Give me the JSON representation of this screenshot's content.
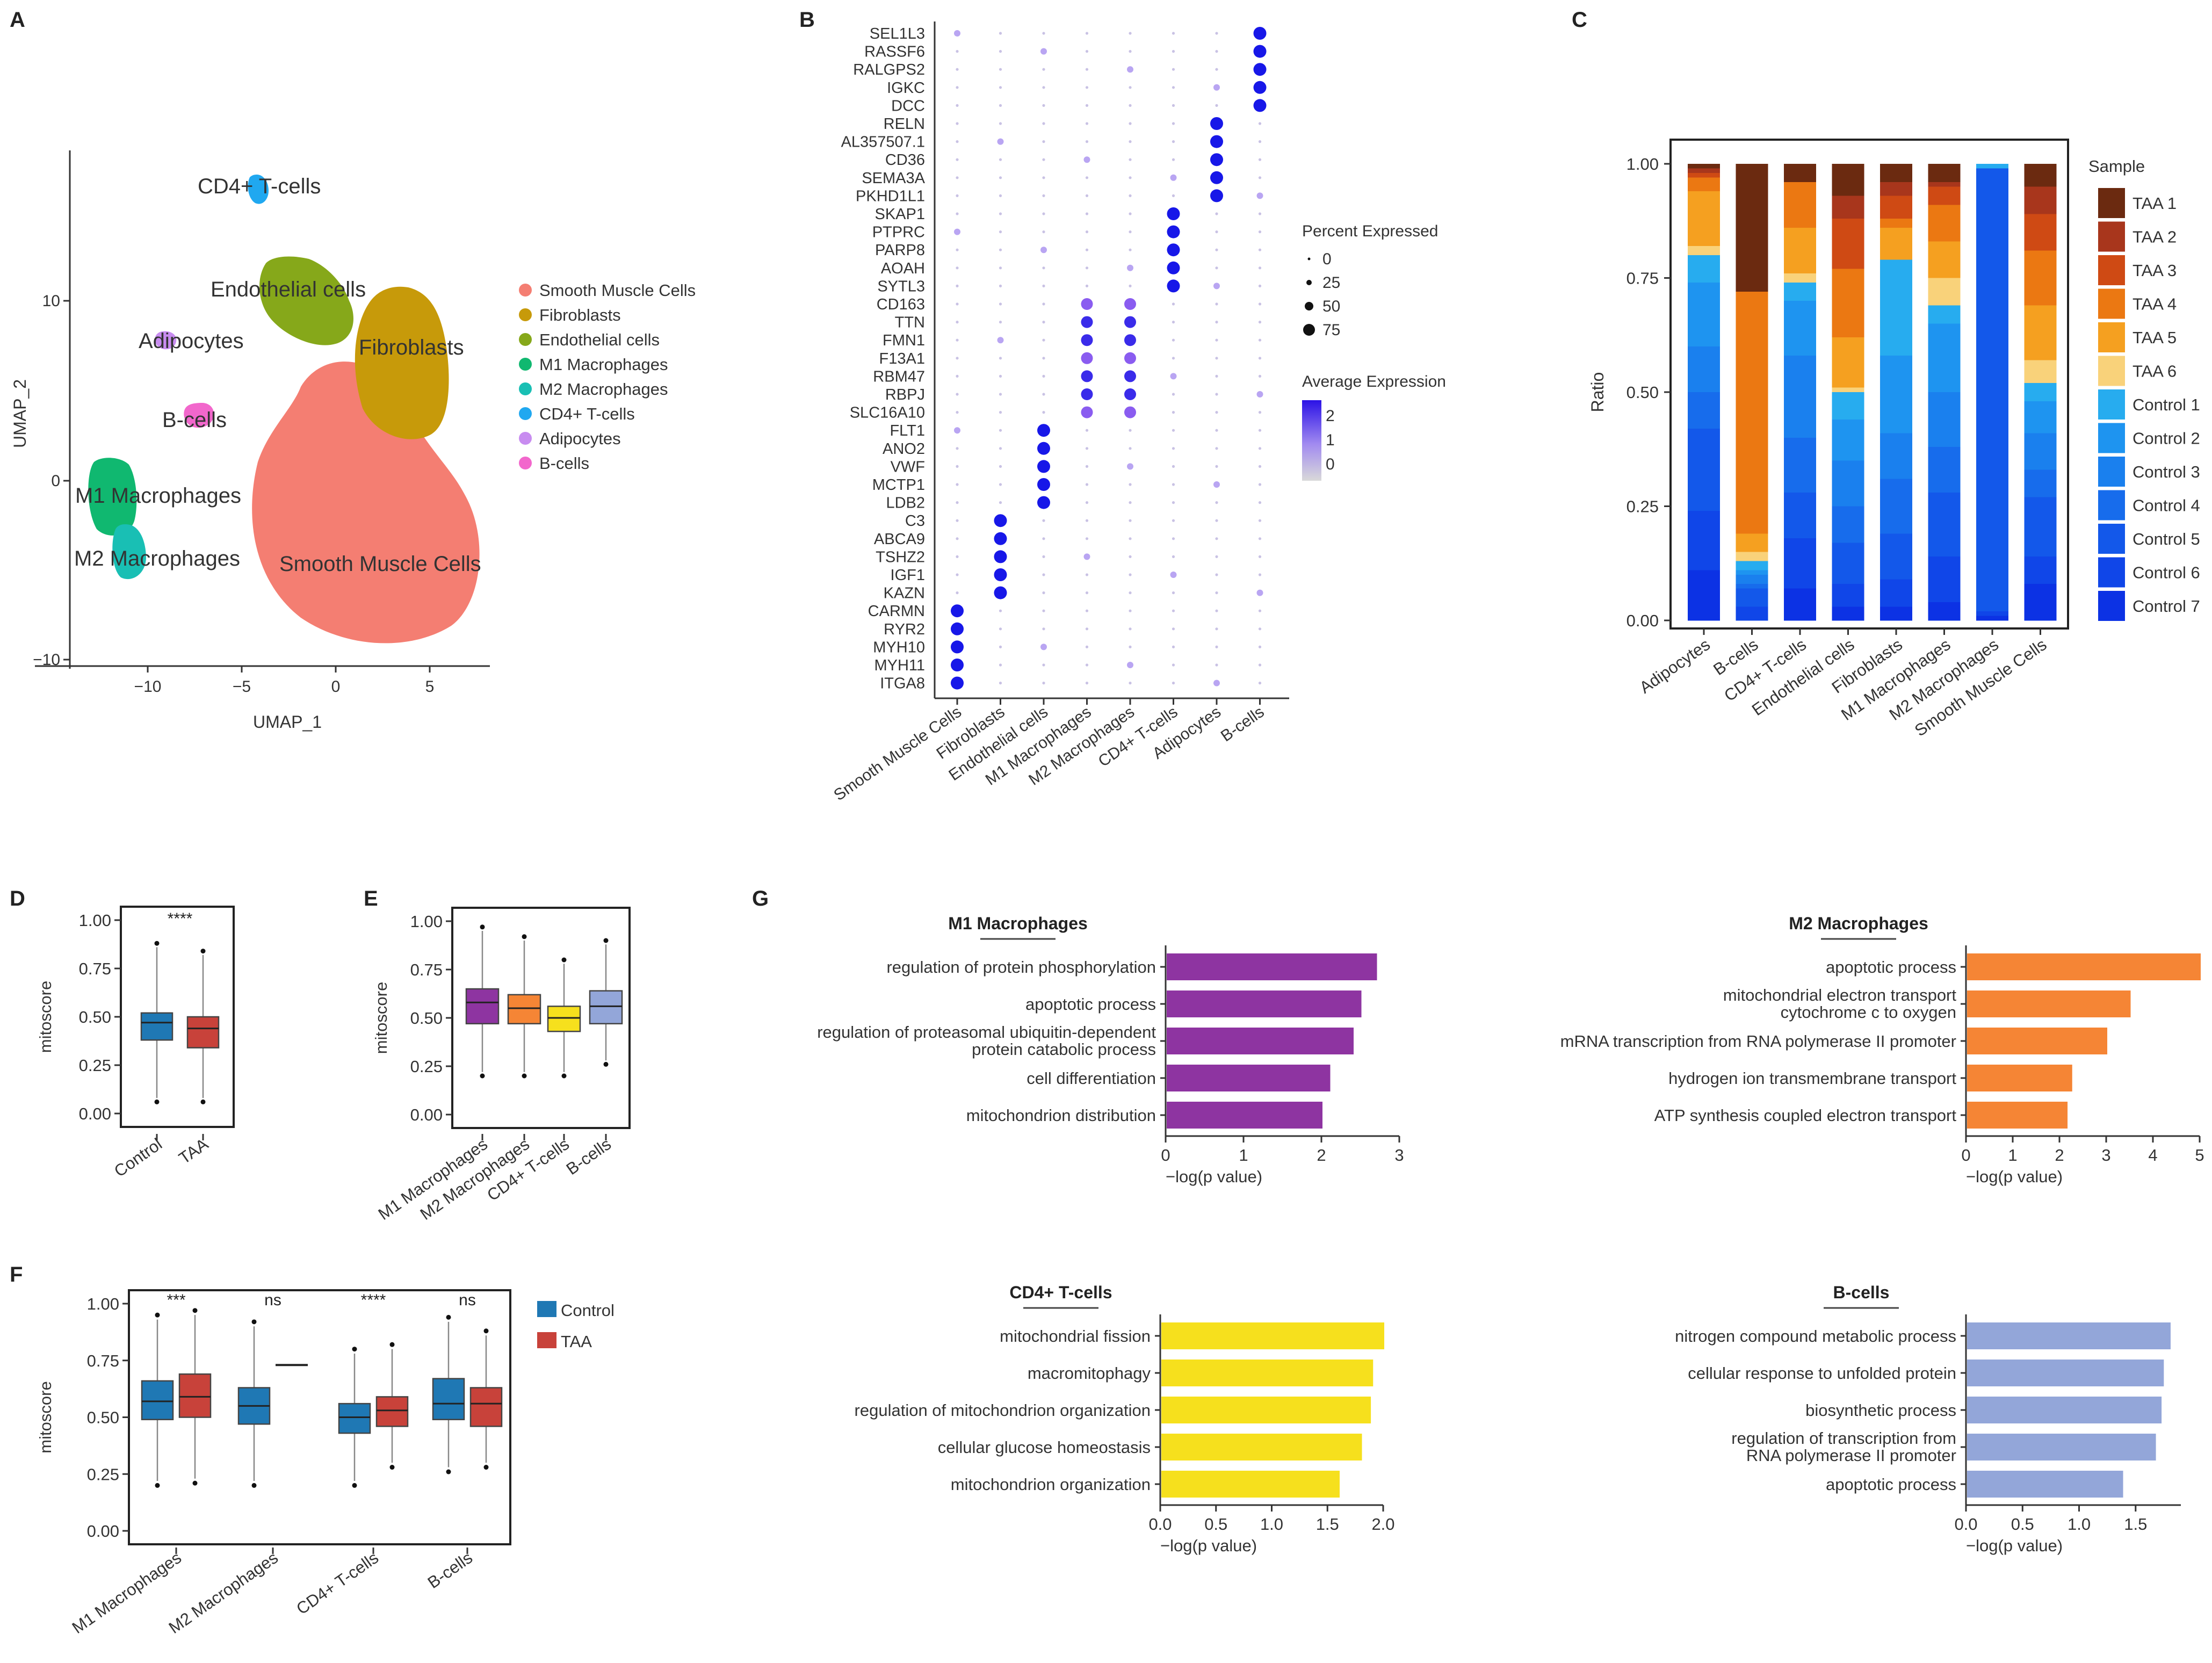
{
  "panel_letters": {
    "A": "A",
    "B": "B",
    "C": "C",
    "D": "D",
    "E": "E",
    "F": "F",
    "G": "G"
  },
  "colors": {
    "Smooth Muscle Cells": "#F47E72",
    "Fibroblasts": "#C79A0A",
    "Endothelial cells": "#86A81A",
    "M1 Macrophages": "#10B870",
    "M2 Macrophages": "#19BFB4",
    "CD4+ T-cells": "#20A8F0",
    "Adipocytes": "#C88CF0",
    "B-cells": "#F267CC",
    "box_control": "#1F78B4",
    "box_taa": "#C8423A",
    "go_m1": "#8E34A1",
    "go_m2": "#F58535",
    "go_cd4": "#F6E01D",
    "go_b": "#93A6D9"
  },
  "panelA": {
    "xlabel": "UMAP_1",
    "ylabel": "UMAP_2",
    "xticks": [
      "−10",
      "−5",
      "0",
      "5"
    ],
    "yticks": [
      "10",
      "0",
      "−10"
    ],
    "cluster_labels": [
      "CD4+ T-cells",
      "Endothelial cells",
      "Adipocytes",
      "Fibroblasts",
      "B-cells",
      "M1 Macrophages",
      "M2 Macrophages",
      "Smooth Muscle Cells"
    ],
    "legend": [
      "Smooth Muscle Cells",
      "Fibroblasts",
      "Endothelial cells",
      "M1 Macrophages",
      "M2 Macrophages",
      "CD4+ T-cells",
      "Adipocytes",
      "B-cells"
    ]
  },
  "chart_data": [
    {
      "id": "B",
      "type": "dot",
      "genes": [
        "SEL1L3",
        "RASSF6",
        "RALGPS2",
        "IGKC",
        "DCC",
        "RELN",
        "AL357507.1",
        "CD36",
        "SEMA3A",
        "PKHD1L1",
        "SKAP1",
        "PTPRC",
        "PARP8",
        "AOAH",
        "SYTL3",
        "CD163",
        "TTN",
        "FMN1",
        "F13A1",
        "RBM47",
        "RBPJ",
        "SLC16A10",
        "FLT1",
        "ANO2",
        "VWF",
        "MCTP1",
        "LDB2",
        "C3",
        "ABCA9",
        "TSHZ2",
        "IGF1",
        "KAZN",
        "CARMN",
        "RYR2",
        "MYH10",
        "MYH11",
        "ITGA8"
      ],
      "clusters": [
        "Smooth Muscle Cells",
        "Fibroblasts",
        "Endothelial cells",
        "M1 Macrophages",
        "M2 Macrophages",
        "CD4+ T-cells",
        "Adipocytes",
        "B-cells"
      ],
      "marker_groups": [
        [
          32,
          36,
          0
        ],
        [
          27,
          31,
          1
        ],
        [
          22,
          26,
          2
        ],
        [
          15,
          21,
          3
        ],
        [
          15,
          21,
          4
        ],
        [
          10,
          14,
          5
        ],
        [
          5,
          9,
          6
        ],
        [
          0,
          4,
          7
        ]
      ],
      "legend_size_title": "Percent Expressed",
      "size_levels": [
        "0",
        "25",
        "50",
        "75"
      ],
      "legend_color_title": "Average Expression",
      "color_levels": [
        "2",
        "1",
        "0"
      ]
    },
    {
      "id": "C",
      "type": "bar",
      "stacked": true,
      "categories": [
        "Adipocytes",
        "B-cells",
        "CD4+ T-cells",
        "Endothelial cells",
        "Fibroblasts",
        "M1 Macrophages",
        "M2 Macrophages",
        "Smooth Muscle Cells"
      ],
      "samples": [
        "TAA 1",
        "TAA 2",
        "TAA 3",
        "TAA 4",
        "TAA 5",
        "TAA 6",
        "Control 1",
        "Control 2",
        "Control 3",
        "Control 4",
        "Control 5",
        "Control 6",
        "Control 7"
      ],
      "sample_colors": [
        "#6B2A10",
        "#A8361C",
        "#CF4A14",
        "#EB7812",
        "#F5A020",
        "#F9D27A",
        "#27ACEF",
        "#1E94F0",
        "#1A80EE",
        "#176CEC",
        "#1358EA",
        "#1046E8",
        "#0C32E4"
      ],
      "values": [
        [
          0.01,
          0.01,
          0.01,
          0.03,
          0.12,
          0.02,
          0.06,
          0.14,
          0.1,
          0.08,
          0.18,
          0.13,
          0.11
        ],
        [
          0.28,
          0.0,
          0.0,
          0.53,
          0.04,
          0.02,
          0.02,
          0.01,
          0.02,
          0.01,
          0.04,
          0.03,
          0.0
        ],
        [
          0.04,
          0.0,
          0.0,
          0.1,
          0.1,
          0.02,
          0.04,
          0.12,
          0.18,
          0.12,
          0.1,
          0.11,
          0.07
        ],
        [
          0.07,
          0.05,
          0.11,
          0.15,
          0.11,
          0.01,
          0.06,
          0.09,
          0.1,
          0.08,
          0.09,
          0.05,
          0.03
        ],
        [
          0.04,
          0.03,
          0.05,
          0.02,
          0.07,
          0.0,
          0.21,
          0.17,
          0.1,
          0.12,
          0.1,
          0.06,
          0.03
        ],
        [
          0.04,
          0.01,
          0.04,
          0.08,
          0.08,
          0.06,
          0.04,
          0.15,
          0.12,
          0.1,
          0.14,
          0.1,
          0.04
        ],
        [
          0.0,
          0.0,
          0.0,
          0.0,
          0.0,
          0.0,
          0.01,
          0.0,
          0.0,
          0.0,
          0.97,
          0.01,
          0.01
        ],
        [
          0.05,
          0.06,
          0.08,
          0.12,
          0.12,
          0.05,
          0.04,
          0.07,
          0.08,
          0.06,
          0.13,
          0.06,
          0.08
        ]
      ],
      "ylabel": "Ratio",
      "yticks": [
        "1.00",
        "0.75",
        "0.50",
        "0.25",
        "0.00"
      ],
      "ylim": [
        0,
        1
      ],
      "legend_title": "Sample"
    },
    {
      "id": "D",
      "type": "box",
      "categories": [
        "Control",
        "TAA"
      ],
      "stats": [
        [
          0.08,
          0.38,
          0.47,
          0.52,
          0.86
        ],
        [
          0.08,
          0.34,
          0.44,
          0.5,
          0.82
        ]
      ],
      "colors": [
        "#1F78B4",
        "#C8423A"
      ],
      "significance": "****",
      "ylabel": "mitoscore",
      "yticks": [
        "1.00",
        "0.75",
        "0.50",
        "0.25",
        "0.00"
      ],
      "ylim": [
        0,
        1
      ]
    },
    {
      "id": "E",
      "type": "box",
      "categories": [
        "M1 Macrophages",
        "M2 Macrophages",
        "CD4+ T-cells",
        "B-cells"
      ],
      "stats": [
        [
          0.22,
          0.47,
          0.58,
          0.65,
          0.95
        ],
        [
          0.22,
          0.47,
          0.55,
          0.62,
          0.9
        ],
        [
          0.22,
          0.43,
          0.5,
          0.56,
          0.78
        ],
        [
          0.28,
          0.47,
          0.56,
          0.64,
          0.88
        ]
      ],
      "colors": [
        "#8E34A1",
        "#F58535",
        "#F6E01D",
        "#93A6D9"
      ],
      "ylabel": "mitoscore",
      "yticks": [
        "1.00",
        "0.75",
        "0.50",
        "0.25",
        "0.00"
      ],
      "ylim": [
        0,
        1
      ]
    },
    {
      "id": "F",
      "type": "box",
      "categories": [
        "M1 Macrophages",
        "M2 Macrophages",
        "CD4+ T-cells",
        "B-cells"
      ],
      "series": [
        {
          "name": "Control",
          "color": "#1F78B4",
          "stats": [
            [
              0.22,
              0.49,
              0.57,
              0.66,
              0.93
            ],
            [
              0.22,
              0.47,
              0.55,
              0.63,
              0.9
            ],
            [
              0.22,
              0.43,
              0.5,
              0.56,
              0.78
            ],
            [
              0.28,
              0.49,
              0.56,
              0.67,
              0.92
            ]
          ]
        },
        {
          "name": "TAA",
          "color": "#C8423A",
          "stats": [
            [
              0.23,
              0.5,
              0.59,
              0.69,
              0.95
            ],
            [
              0.73,
              0.73,
              0.73,
              0.73,
              0.73
            ],
            [
              0.3,
              0.46,
              0.53,
              0.59,
              0.8
            ],
            [
              0.3,
              0.46,
              0.56,
              0.63,
              0.86
            ]
          ]
        }
      ],
      "significance": [
        "***",
        "ns",
        "****",
        "ns"
      ],
      "ylabel": "mitoscore",
      "yticks": [
        "1.00",
        "0.75",
        "0.50",
        "0.25",
        "0.00"
      ],
      "ylim": [
        0,
        1
      ]
    },
    {
      "id": "G-M1",
      "type": "bar",
      "orientation": "horizontal",
      "title": "M1 Macrophages",
      "terms": [
        "regulation of protein phosphorylation",
        "apoptotic process",
        "regulation of proteasomal ubiquitin-dependent|protein catabolic process",
        "cell differentiation",
        "mitochondrion distribution"
      ],
      "values": [
        2.7,
        2.5,
        2.4,
        2.1,
        2.0
      ],
      "xmax": 3,
      "xticks": [
        "0",
        "1",
        "2",
        "3"
      ],
      "xlabel": "−log(p value)",
      "color": "#8E34A1"
    },
    {
      "id": "G-M2",
      "type": "bar",
      "orientation": "horizontal",
      "title": "M2 Macrophages",
      "terms": [
        "apoptotic process",
        "mitochondrial electron transport|cytochrome c to oxygen",
        "mRNA transcription from RNA polymerase II promoter",
        "hydrogen ion transmembrane transport",
        "ATP synthesis coupled electron transport"
      ],
      "values": [
        5.0,
        3.5,
        3.0,
        2.25,
        2.15
      ],
      "xmax": 5,
      "xticks": [
        "0",
        "1",
        "2",
        "3",
        "4",
        "5"
      ],
      "xlabel": "−log(p value)",
      "color": "#F58535"
    },
    {
      "id": "G-CD4",
      "type": "bar",
      "orientation": "horizontal",
      "title": "CD4+ T-cells",
      "terms": [
        "mitochondrial fission",
        "macromitophagy",
        "regulation of mitochondrion organization",
        "cellular glucose homeostasis",
        "mitochondrion organization"
      ],
      "values": [
        2.0,
        1.9,
        1.88,
        1.8,
        1.6
      ],
      "xmax": 2.0,
      "xticks": [
        "0.0",
        "0.5",
        "1.0",
        "1.5",
        "2.0"
      ],
      "xlabel": "−log(p value)",
      "color": "#F6E01D"
    },
    {
      "id": "G-B",
      "type": "bar",
      "orientation": "horizontal",
      "title": "B-cells",
      "terms": [
        "nitrogen compound metabolic process",
        "cellular response to unfolded protein",
        "biosynthetic process",
        "regulation of transcription from|RNA polymerase II promoter",
        "apoptotic process"
      ],
      "values": [
        1.8,
        1.74,
        1.72,
        1.67,
        1.38
      ],
      "xmax": 1.9,
      "xticks": [
        "0.0",
        "0.5",
        "1.0",
        "1.5"
      ],
      "xlabel": "−log(p value)",
      "color": "#93A6D9"
    }
  ]
}
